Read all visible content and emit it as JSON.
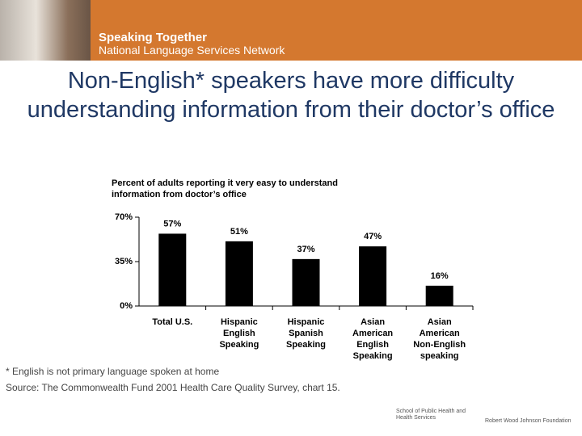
{
  "header": {
    "title": "Speaking Together",
    "subtitle": "National Language Services Network"
  },
  "chart_data": {
    "type": "bar",
    "title": "Non-English* speakers have more difficulty understanding information from their doctor’s office",
    "subtitle": "Percent of adults reporting it very easy to understand information from doctor’s office",
    "categories": [
      "Total U.S.",
      "Hispanic\nEnglish\nSpeaking",
      "Hispanic\nSpanish\nSpeaking",
      "Asian\nAmerican\nEnglish\nSpeaking",
      "Asian\nAmerican\nNon-English\nspeaking"
    ],
    "values": [
      57,
      51,
      37,
      47,
      16
    ],
    "value_labels": [
      "57%",
      "51%",
      "37%",
      "47%",
      "16%"
    ],
    "color": "#000000",
    "ylim": [
      0,
      70
    ],
    "yticks": [
      {
        "value": 0,
        "label": "0%"
      },
      {
        "value": 35,
        "label": "35%"
      },
      {
        "value": 70,
        "label": "70%"
      }
    ]
  },
  "footnotes": [
    "* English is not primary language spoken at home",
    "Source: The Commonwealth Fund 2001 Health Care Quality Survey, chart 15."
  ],
  "logos": [
    "School of Public Health and Health Services",
    "Robert Wood Johnson Foundation"
  ]
}
